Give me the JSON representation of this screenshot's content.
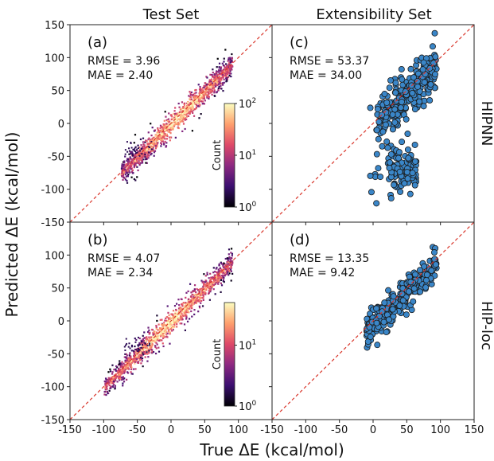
{
  "figure": {
    "x_label": "True ΔE (kcal/mol)",
    "y_label": "Predicted ΔE (kcal/mol)",
    "column_titles": [
      "Test Set",
      "Extensibility Set"
    ],
    "row_titles": [
      "HIPNN",
      "HIP-loc"
    ],
    "colors": {
      "scatter_fill": "#3a86c8",
      "scatter_edge": "#1a1a1a",
      "diagonal": "#d9362b",
      "colormap": [
        "#000004",
        "#3b0f70",
        "#8c2981",
        "#de4968",
        "#fe9f6d",
        "#fcfdbf"
      ]
    }
  },
  "chart_data": [
    {
      "id": "a",
      "type": "heatmap",
      "panel_label": "(a)",
      "metrics": [
        "RMSE = 3.96",
        "MAE   = 2.40"
      ],
      "xlim": [
        -150,
        150
      ],
      "ylim": [
        -150,
        150
      ],
      "x_ticks": [
        -150,
        -100,
        -50,
        0,
        50,
        100,
        150
      ],
      "y_ticks": [
        -150,
        -100,
        -50,
        0,
        50,
        100,
        150
      ],
      "x_tick_labels": [
        "-150",
        "-100",
        "-50",
        "0",
        "50",
        "100",
        ""
      ],
      "y_tick_labels": [
        "-150",
        "-100",
        "-50",
        "0",
        "50",
        "100",
        "150"
      ],
      "show_x_tick_labels": false,
      "show_y_tick_labels": true,
      "reference_line": "y = x",
      "density_ridge": {
        "x_range": [
          -75,
          90
        ],
        "slope": 1.0,
        "spread": 8
      },
      "colorbar": {
        "label": "Count",
        "scale": "log",
        "range": [
          1,
          100
        ],
        "ticks": [
          "10",
          "10",
          "10"
        ],
        "tick_exponents": [
          "0",
          "1",
          "2"
        ]
      }
    },
    {
      "id": "c",
      "type": "scatter",
      "panel_label": "(c)",
      "metrics": [
        "RMSE = 53.37",
        "MAE   = 34.00"
      ],
      "xlim": [
        -150,
        150
      ],
      "ylim": [
        -150,
        150
      ],
      "x_ticks": [
        -150,
        -100,
        -50,
        0,
        50,
        100,
        150
      ],
      "y_ticks": [
        -150,
        -100,
        -50,
        0,
        50,
        100,
        150
      ],
      "show_x_tick_labels": false,
      "show_y_tick_labels": false,
      "reference_line": "y = x",
      "clusters": [
        {
          "x_range": [
            5,
            95
          ],
          "y_center_offset": -5,
          "y_spread": 18,
          "n": 260
        },
        {
          "x_range": [
            20,
            65
          ],
          "y_center": -70,
          "y_spread": 18,
          "n": 110
        },
        {
          "x_range": [
            -5,
            15
          ],
          "y_center": -60,
          "y_spread": 45,
          "n": 12
        }
      ]
    },
    {
      "id": "b",
      "type": "heatmap",
      "panel_label": "(b)",
      "metrics": [
        "RMSE = 4.07",
        "MAE   = 2.34"
      ],
      "xlim": [
        -150,
        150
      ],
      "ylim": [
        -150,
        150
      ],
      "x_ticks": [
        -150,
        -100,
        -50,
        0,
        50,
        100,
        150
      ],
      "y_ticks": [
        -150,
        -100,
        -50,
        0,
        50,
        100,
        150
      ],
      "x_tick_labels": [
        "-150",
        "-100",
        "-50",
        "0",
        "50",
        "100",
        ""
      ],
      "y_tick_labels": [
        "-150",
        "-100",
        "-50",
        "0",
        "50",
        "100",
        ""
      ],
      "show_x_tick_labels": true,
      "show_y_tick_labels": true,
      "reference_line": "y = x",
      "density_ridge": {
        "x_range": [
          -100,
          90
        ],
        "slope": 1.0,
        "spread": 8
      },
      "colorbar": {
        "label": "Count",
        "scale": "log",
        "range": [
          1,
          50
        ],
        "ticks": [
          "10",
          "10"
        ],
        "tick_exponents": [
          "0",
          "1"
        ]
      }
    },
    {
      "id": "d",
      "type": "scatter",
      "panel_label": "(d)",
      "metrics": [
        "RMSE = 13.35",
        "MAE   = 9.42"
      ],
      "xlim": [
        -150,
        150
      ],
      "ylim": [
        -150,
        150
      ],
      "x_ticks": [
        -150,
        -100,
        -50,
        0,
        50,
        100,
        150
      ],
      "y_ticks": [
        -150,
        -100,
        -50,
        0,
        50,
        100,
        150
      ],
      "x_tick_labels": [
        "-150",
        "-100",
        "-50",
        "0",
        "50",
        "100",
        "150"
      ],
      "show_x_tick_labels": true,
      "show_y_tick_labels": false,
      "reference_line": "y = x",
      "clusters": [
        {
          "x_range": [
            -10,
            95
          ],
          "y_center_offset": -8,
          "y_spread": 12,
          "n": 300
        }
      ]
    }
  ]
}
